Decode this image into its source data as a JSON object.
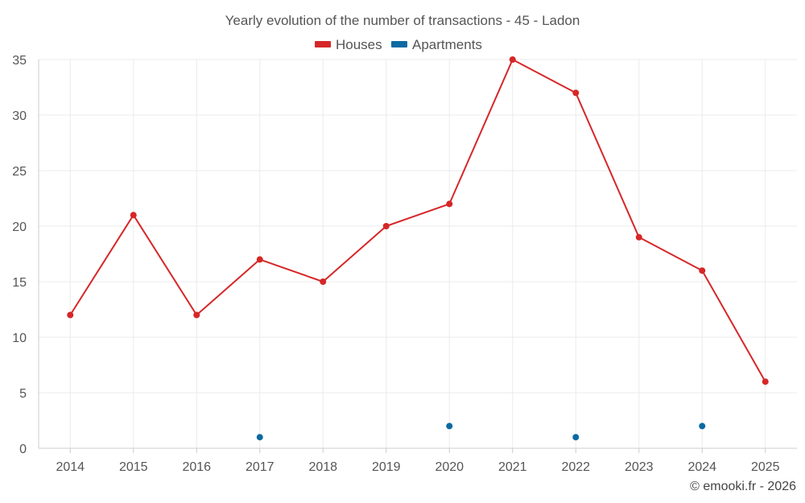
{
  "chart_data": {
    "type": "line",
    "title": "Yearly evolution of the number of transactions - 45 - Ladon",
    "categories": [
      "2014",
      "2015",
      "2016",
      "2017",
      "2018",
      "2019",
      "2020",
      "2021",
      "2022",
      "2023",
      "2024",
      "2025"
    ],
    "series": [
      {
        "name": "Houses",
        "color": "#d62728",
        "values": [
          12,
          21,
          12,
          17,
          15,
          20,
          22,
          35,
          32,
          19,
          16,
          6
        ],
        "connected": true
      },
      {
        "name": "Apartments",
        "color": "#0b6aa2",
        "values": [
          null,
          null,
          null,
          1,
          null,
          null,
          2,
          null,
          1,
          null,
          2,
          null
        ],
        "connected": false
      }
    ],
    "ylim": [
      0,
      35
    ],
    "yticks": [
      0,
      5,
      10,
      15,
      20,
      25,
      30,
      35
    ],
    "xlabel": "",
    "ylabel": "",
    "grid": true,
    "legend_position": "top-center"
  },
  "credit": "© emooki.fr - 2026"
}
